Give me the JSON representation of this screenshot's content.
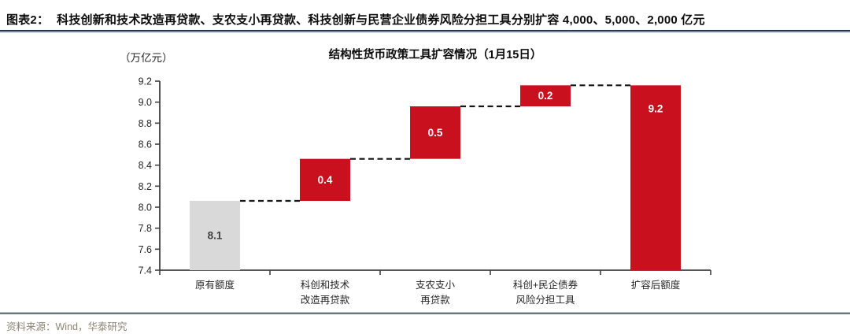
{
  "header": {
    "tag": "图表2：",
    "title": "科技创新和技术改造再贷款、支农支小再贷款、科技创新与民营企业债券风险分担工具分别扩容 4,000、5,000、2,000 亿元"
  },
  "chart_data": {
    "type": "bar",
    "subtype": "waterfall",
    "title": "结构性货币政策工具扩容情况（1月15日）",
    "y_unit": "（万亿元）",
    "ylim": [
      7.4,
      9.2
    ],
    "y_ticks": [
      9.2,
      9.0,
      8.8,
      8.6,
      8.4,
      8.2,
      8.0,
      7.8,
      7.6,
      7.4
    ],
    "grid": false,
    "legend": false,
    "connector_style": "dashed",
    "colors": {
      "base": "#d9d9d9",
      "increase": "#c8101e",
      "total": "#c8101e",
      "connector": "#141414"
    },
    "bars": [
      {
        "category": "原有额度",
        "label": "8.1",
        "value": 8.1,
        "from": 7.4,
        "to": 8.06,
        "role": "base",
        "color": "#d9d9d9",
        "label_color": "#3f3f3f",
        "label_pos": "center"
      },
      {
        "category": "科创和技术\n改造再贷款",
        "label": "0.4",
        "value": 0.4,
        "from": 8.06,
        "to": 8.46,
        "role": "increase",
        "color": "#c8101e",
        "label_color": "#ffffff",
        "label_pos": "center"
      },
      {
        "category": "支农支小\n再贷款",
        "label": "0.5",
        "value": 0.5,
        "from": 8.46,
        "to": 8.96,
        "role": "increase",
        "color": "#c8101e",
        "label_color": "#ffffff",
        "label_pos": "center"
      },
      {
        "category": "科创+民企债券\n风险分担工具",
        "label": "0.2",
        "value": 0.2,
        "from": 8.96,
        "to": 9.16,
        "role": "increase",
        "color": "#c8101e",
        "label_color": "#ffffff",
        "label_pos": "center"
      },
      {
        "category": "扩容后额度",
        "label": "9.2",
        "value": 9.2,
        "from": 7.4,
        "to": 9.16,
        "role": "total",
        "color": "#c8101e",
        "label_color": "#ffffff",
        "label_pos": "top"
      }
    ]
  },
  "footer": {
    "source": "资料来源：Wind，华泰研究"
  }
}
